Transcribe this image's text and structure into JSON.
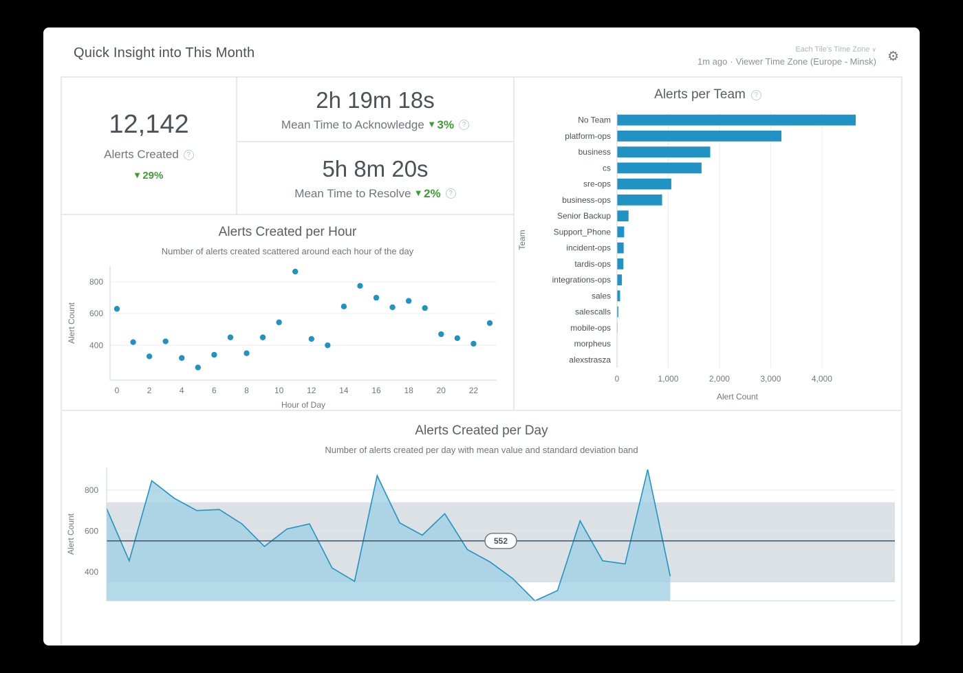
{
  "header": {
    "title": "Quick Insight into This Month",
    "tile_timezone_label": "Each Tile's Time Zone",
    "updated": "1m ago",
    "separator": "·",
    "viewer_timezone": "Viewer Time Zone (Europe - Minsk)"
  },
  "colors": {
    "accent": "#2093c4",
    "accent_fill": "#9fcfe4",
    "green": "#3f9c35",
    "band": "#dbe1e5",
    "mean_line": "#33475a",
    "grid_line": "#ececec",
    "axis_line": "#cfd4d8"
  },
  "tiles": {
    "alerts_created": {
      "value": "12,142",
      "label": "Alerts Created",
      "delta": "29%",
      "direction": "down"
    },
    "mtta": {
      "value": "2h 19m 18s",
      "label": "Mean Time to Acknowledge",
      "delta": "3%",
      "direction": "down"
    },
    "mttr": {
      "value": "5h 8m 20s",
      "label": "Mean Time to Resolve",
      "delta": "2%",
      "direction": "down"
    }
  },
  "chart_data": [
    {
      "id": "team",
      "type": "bar",
      "orientation": "horizontal",
      "title": "Alerts per Team",
      "categories": [
        "No Team",
        "platform-ops",
        "business",
        "cs",
        "sre-ops",
        "business-ops",
        "Senior Backup",
        "Support_Phone",
        "incident-ops",
        "tardis-ops",
        "integrations-ops",
        "sales",
        "salescalls",
        "mobile-ops",
        "morpheus",
        "alexstrasza"
      ],
      "values": [
        4660,
        3210,
        1820,
        1650,
        1060,
        880,
        225,
        140,
        130,
        125,
        95,
        60,
        25,
        10,
        5,
        3
      ],
      "xlabel": "Alert Count",
      "ylabel": "Team",
      "xticks": [
        0,
        1000,
        2000,
        3000,
        4000
      ],
      "xlim": [
        0,
        4700
      ],
      "grid": "vertical",
      "legend": false
    },
    {
      "id": "hour",
      "type": "scatter",
      "title": "Alerts Created per Hour",
      "subtitle": "Number of alerts created scattered around each hour of the day",
      "x": [
        0,
        1,
        2,
        3,
        4,
        5,
        6,
        7,
        8,
        9,
        10,
        11,
        12,
        13,
        14,
        15,
        16,
        17,
        18,
        19,
        20,
        21,
        22,
        23
      ],
      "y": [
        630,
        420,
        330,
        425,
        320,
        260,
        340,
        450,
        350,
        450,
        545,
        865,
        440,
        400,
        645,
        775,
        700,
        640,
        680,
        635,
        470,
        445,
        410,
        540
      ],
      "xlabel": "Hour of Day",
      "ylabel": "Alert Count",
      "xticks": [
        0,
        2,
        4,
        6,
        8,
        10,
        12,
        14,
        16,
        18,
        20,
        22
      ],
      "yticks": [
        400,
        600,
        800
      ],
      "ylim": [
        180,
        900
      ],
      "grid": "horizontal",
      "legend": false
    },
    {
      "id": "day",
      "type": "area",
      "title": "Alerts Created per Day",
      "subtitle": "Number of alerts created per day with mean value and standard deviation band",
      "values": [
        710,
        455,
        845,
        760,
        700,
        705,
        635,
        525,
        610,
        635,
        420,
        355,
        870,
        640,
        580,
        685,
        510,
        450,
        370,
        240,
        310,
        650,
        455,
        440,
        900,
        380
      ],
      "mean": 552,
      "mean_label": "552",
      "band": [
        350,
        740
      ],
      "ylabel": "Alert Count",
      "yticks": [
        400,
        600,
        800
      ],
      "ylim": [
        260,
        910
      ],
      "data_span_fraction": 0.715,
      "band_span": "full-width",
      "grid": "horizontal",
      "legend": false
    }
  ]
}
